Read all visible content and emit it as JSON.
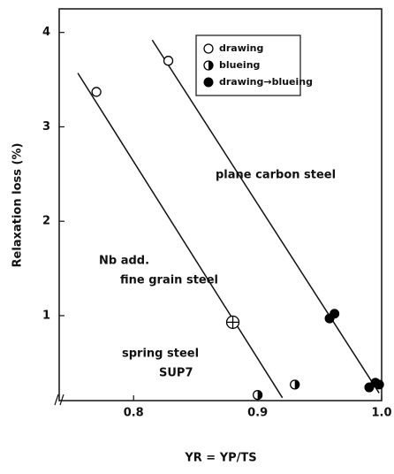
{
  "chart_data": {
    "type": "scatter",
    "xlabel": "YR = YP/TS",
    "ylabel": "Relaxation loss (%)",
    "xlim": [
      0.74,
      1.0
    ],
    "ylim": [
      0.1,
      4.25
    ],
    "xticks": [
      0.8,
      0.9,
      {
        "value": 1,
        "label": "1.0"
      }
    ],
    "yticks": [
      1,
      2,
      3,
      4
    ],
    "series": [
      {
        "name": "drawing",
        "marker": "open",
        "color": "#000000",
        "x": [
          0.77,
          0.828
        ],
        "values": [
          3.37,
          3.7
        ]
      },
      {
        "name": "blueing",
        "marker": "half",
        "color": "#000000",
        "x": [
          0.9,
          0.93
        ],
        "values": [
          0.16,
          0.27
        ]
      },
      {
        "name": "drawing→blueing",
        "marker": "filled",
        "color": "#000000",
        "x": [
          0.958,
          0.962,
          0.99,
          0.995,
          0.998
        ],
        "values": [
          0.97,
          1.02,
          0.24,
          0.29,
          0.27
        ]
      },
      {
        "marker": "crossed",
        "color": "#000000",
        "x": [
          0.88
        ],
        "values": [
          0.93
        ]
      }
    ],
    "lines": [
      {
        "x": [
          0.755,
          0.92
        ],
        "values": [
          3.57,
          0.13
        ]
      },
      {
        "x": [
          0.815,
          0.998
        ],
        "values": [
          3.92,
          0.18
        ]
      }
    ],
    "annotations": [
      "plane carbon steel",
      "Nb add.",
      "fine grain steel",
      "spring steel",
      "SUP7"
    ]
  }
}
